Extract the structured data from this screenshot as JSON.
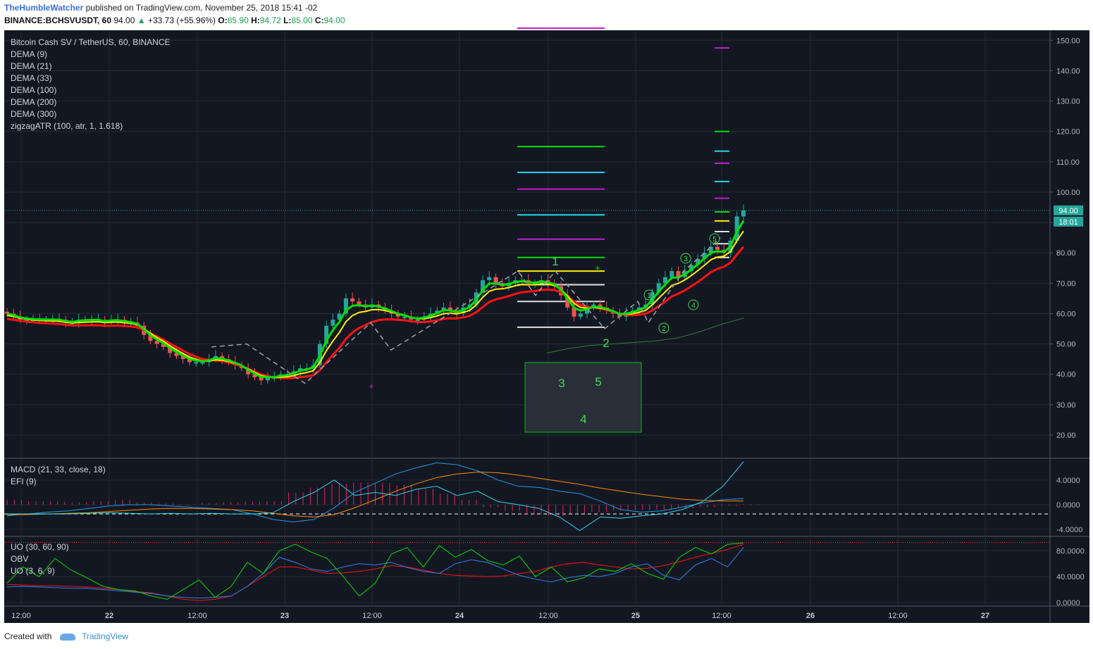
{
  "header": {
    "author": "TheHumbleWatcher",
    "published": "published on TradingView.com, November 25, 2018 15:41 -02",
    "symbol_line": "BINANCE:BCHSVUSDT, 60",
    "last": "94.00",
    "change": "+33.73 (+55.96%)",
    "ohlc_o_label": "O:",
    "ohlc_o": "85.90",
    "ohlc_h_label": "H:",
    "ohlc_h": "94.72",
    "ohlc_l_label": "L:",
    "ohlc_l": "85.00",
    "ohlc_c_label": "C:",
    "ohlc_c": "94.00"
  },
  "legend": {
    "title": "Bitcoin Cash SV / TetherUS, 60, BINANCE",
    "studies": [
      "DEMA (9)",
      "DEMA (21)",
      "DEMA (33)",
      "DEMA (100)",
      "DEMA (200)",
      "DEMA (300)",
      "zigzagATR (100, atr, 1, 1.618)"
    ]
  },
  "macd_legend": [
    "MACD (21, 33, close, 18)",
    "EFI (9)"
  ],
  "uo_legend": [
    "UO (30, 60, 90)",
    "OBV",
    "UO (3, 6, 9)"
  ],
  "price_badge": "94.00",
  "time_badge": "18:01",
  "wave_labels": {
    "one": "1",
    "two": "2",
    "three": "3",
    "four": "4",
    "five": "5"
  },
  "wave_circles": [
    "1",
    "2",
    "3",
    "4",
    "5"
  ],
  "footer": {
    "created": "Created with",
    "brand": "TradingView"
  },
  "colors": {
    "background": "#131722",
    "up": "#26a69a",
    "down": "#ef5350",
    "dema_fast": "#00e000",
    "dema_mid": "#ffee00",
    "dema_slow": "#ff1111",
    "macd_line": "#1e9be9",
    "signal": "#ff8c00",
    "efi": "#26d7e8",
    "efi_hist": "#e91e63",
    "uo_slow": "#ff1111",
    "obv": "#2f80ed",
    "uo_fast": "#00e000"
  },
  "chart_data": [
    {
      "type": "candlestick",
      "title": "Bitcoin Cash SV / TetherUS, 60, BINANCE",
      "y_ticks": [
        "150.00",
        "140.00",
        "130.00",
        "120.00",
        "110.00",
        "100.00",
        "90.00",
        "80.00",
        "70.00",
        "60.00",
        "50.00",
        "40.00",
        "30.00",
        "20.00"
      ],
      "ylim": [
        15,
        156
      ],
      "x_ticks": [
        "12:00",
        "22",
        "12:00",
        "23",
        "12:00",
        "24",
        "12:00",
        "25",
        "12:00",
        "26",
        "12:00",
        "27"
      ],
      "approx_close": [
        60,
        59,
        58,
        58,
        58,
        58,
        58,
        58,
        58,
        57,
        57,
        58,
        58,
        58,
        58,
        57,
        58,
        58,
        57,
        57,
        56,
        53,
        51,
        50,
        49,
        47,
        46,
        45,
        44,
        44,
        44,
        45,
        46,
        45,
        44,
        43,
        42,
        40,
        39,
        38,
        39,
        39,
        40,
        40,
        41,
        42,
        42,
        43,
        50,
        56,
        58,
        60,
        65,
        64,
        63,
        62,
        63,
        62,
        61,
        60,
        59,
        59,
        58,
        58,
        59,
        60,
        61,
        62,
        61,
        60,
        62,
        63,
        67,
        71,
        72,
        70,
        69,
        70,
        71,
        71,
        70,
        70,
        71,
        70,
        69,
        66,
        62,
        59,
        60,
        62,
        63,
        62,
        61,
        60,
        59,
        60,
        61,
        62,
        63,
        67,
        70,
        72,
        74,
        72,
        74,
        76,
        78,
        80,
        82,
        81,
        80,
        84,
        92,
        94
      ],
      "horizontal_levels": [
        {
          "value": 115.0,
          "color": "#00e000"
        },
        {
          "value": 106.5,
          "color": "#26d7e8"
        },
        {
          "value": 101.0,
          "color": "#c21ecc"
        },
        {
          "value": 92.5,
          "color": "#26d7e8"
        },
        {
          "value": 84.5,
          "color": "#c21ecc"
        },
        {
          "value": 78.5,
          "color": "#00e000"
        },
        {
          "value": 74.0,
          "color": "#ffee00"
        },
        {
          "value": 69.5,
          "color": "#e0e0e0"
        },
        {
          "value": 64.0,
          "color": "#e0e0e0"
        },
        {
          "value": 55.5,
          "color": "#e0e0e0"
        },
        {
          "value": 154.0,
          "color": "#c21ecc"
        },
        {
          "value": 147.5,
          "color": "#c21ecc"
        },
        {
          "value": 120.0,
          "color": "#00e000"
        },
        {
          "value": 113.5,
          "color": "#26d7e8"
        },
        {
          "value": 109.5,
          "color": "#c21ecc"
        },
        {
          "value": 103.5,
          "color": "#26d7e8"
        },
        {
          "value": 98.0,
          "color": "#c21ecc"
        },
        {
          "value": 93.5,
          "color": "#00e000"
        },
        {
          "value": 90.5,
          "color": "#ffee00"
        },
        {
          "value": 87.0,
          "color": "#e0e0e0"
        },
        {
          "value": 83.0,
          "color": "#e0e0e0"
        },
        {
          "value": 78.5,
          "color": "#e0e0e0"
        }
      ],
      "last_price": 94.0
    },
    {
      "type": "line",
      "y_ticks": [
        "4.0000",
        "0.0000",
        "-4.0000"
      ],
      "ylim": [
        -6,
        7.8
      ],
      "series": [
        {
          "name": "MACD",
          "values": [
            -1.8,
            -1.5,
            -1.2,
            -1.0,
            -0.6,
            -0.2,
            0.0,
            0.0,
            -0.2,
            -0.4,
            -0.6,
            -0.8,
            -1.5,
            -2.4,
            -2.8,
            -2.4,
            -0.5,
            2.0,
            3.5,
            5.0,
            6.0,
            6.8,
            6.5,
            5.5,
            4.0,
            3.0,
            2.8,
            2.2,
            1.8,
            0.6,
            -0.8,
            -1.2,
            -1.0,
            -0.4,
            0.3,
            0.8,
            1.0
          ]
        },
        {
          "name": "Signal",
          "values": [
            -1.6,
            -1.6,
            -1.5,
            -1.4,
            -1.3,
            -1.1,
            -0.9,
            -0.7,
            -0.6,
            -0.6,
            -0.7,
            -0.8,
            -1.0,
            -1.4,
            -1.8,
            -2.0,
            -1.6,
            -0.5,
            0.8,
            2.2,
            3.4,
            4.4,
            5.0,
            5.3,
            5.2,
            4.8,
            4.3,
            3.8,
            3.3,
            2.7,
            2.2,
            1.7,
            1.3,
            0.9,
            0.7,
            0.6,
            0.6
          ]
        },
        {
          "name": "EFI",
          "values": [
            -1.5,
            -1.5,
            -1.5,
            -1.5,
            -1.4,
            -1.3,
            -1.4,
            -1.5,
            -1.4,
            -1.5,
            -1.4,
            -1.5,
            -1.5,
            -1.3,
            0.5,
            2.0,
            4.0,
            1.5,
            2.0,
            1.5,
            2.5,
            3.0,
            1.5,
            2.2,
            0.5,
            0.0,
            -0.6,
            -2.0,
            -4.2,
            -2.0,
            -2.2,
            -1.8,
            -1.5,
            -0.8,
            0.5,
            3.0,
            7.0
          ]
        }
      ],
      "histogram": [
        0.8,
        0.6,
        0.5,
        0.4,
        0.6,
        0.8,
        0.4,
        0.2,
        0.1,
        0.3,
        0.4,
        0.5,
        0.6,
        2.0,
        2.8,
        3.4,
        3.6,
        3.5,
        3.2,
        2.6,
        1.8,
        0.8,
        -0.4,
        -1.0,
        -1.5,
        -1.8,
        -1.4,
        -1.2,
        -1.0,
        -0.9,
        -0.8,
        -0.6,
        -0.4,
        -0.2,
        0.1
      ],
      "dashed_level": -1.5
    },
    {
      "type": "line",
      "y_ticks": [
        "80.0000",
        "40.0000",
        "0.0000"
      ],
      "ylim": [
        -1,
        100
      ],
      "series": [
        {
          "name": "UO (30, 60, 90)",
          "values": [
            28,
            27,
            26,
            26,
            25,
            24,
            22,
            20,
            17,
            15,
            10,
            5,
            3,
            5,
            10,
            25,
            40,
            55,
            55,
            50,
            45,
            46,
            48,
            52,
            57,
            55,
            50,
            45,
            42,
            41,
            40,
            41,
            45,
            48,
            55,
            60,
            62,
            58,
            55,
            52,
            53,
            57,
            63,
            70,
            76,
            82,
            90
          ]
        },
        {
          "name": "OBV",
          "values": [
            24,
            25,
            24,
            23,
            22,
            22,
            20,
            18,
            16,
            14,
            10,
            8,
            7,
            8,
            10,
            25,
            45,
            70,
            62,
            52,
            48,
            55,
            60,
            58,
            62,
            54,
            48,
            45,
            60,
            66,
            62,
            52,
            42,
            36,
            32,
            38,
            42,
            40,
            45,
            55,
            60,
            42,
            35,
            58,
            68,
            55,
            85
          ]
        },
        {
          "name": "UO (3, 6, 9)",
          "values": [
            30,
            55,
            40,
            68,
            50,
            38,
            25,
            20,
            18,
            10,
            5,
            20,
            35,
            8,
            25,
            62,
            45,
            80,
            90,
            78,
            68,
            40,
            10,
            30,
            75,
            85,
            55,
            88,
            70,
            82,
            65,
            58,
            72,
            40,
            55,
            32,
            38,
            52,
            48,
            60,
            45,
            36,
            70,
            85,
            75,
            90,
            92
          ]
        }
      ],
      "dotted_level": 93
    }
  ]
}
